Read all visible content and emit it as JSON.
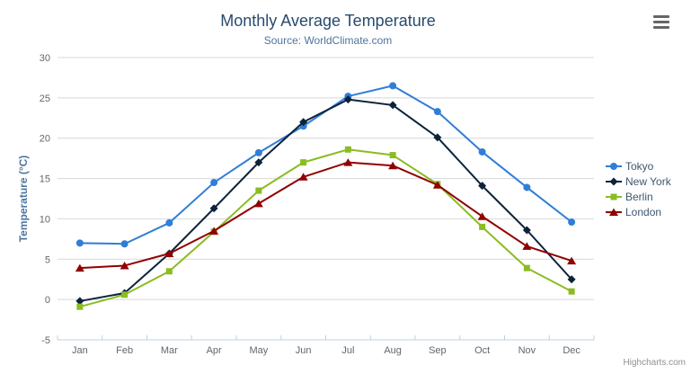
{
  "chart_data": {
    "type": "line",
    "title": "Monthly Average Temperature",
    "subtitle": "Source: WorldClimate.com",
    "xlabel": "",
    "ylabel": "Temperature (°C)",
    "categories": [
      "Jan",
      "Feb",
      "Mar",
      "Apr",
      "May",
      "Jun",
      "Jul",
      "Aug",
      "Sep",
      "Oct",
      "Nov",
      "Dec"
    ],
    "yticks": [
      -5,
      0,
      5,
      10,
      15,
      20,
      25,
      30
    ],
    "ylim": [
      -5,
      30
    ],
    "grid": true,
    "legend_position": "right",
    "series": [
      {
        "name": "Tokyo",
        "marker": "circle",
        "color": "#2f7ed8",
        "values": [
          7.0,
          6.9,
          9.5,
          14.5,
          18.2,
          21.5,
          25.2,
          26.5,
          23.3,
          18.3,
          13.9,
          9.6
        ]
      },
      {
        "name": "New York",
        "marker": "diamond",
        "color": "#0d233a",
        "values": [
          -0.2,
          0.8,
          5.7,
          11.3,
          17.0,
          22.0,
          24.8,
          24.1,
          20.1,
          14.1,
          8.6,
          2.5
        ]
      },
      {
        "name": "Berlin",
        "marker": "square",
        "color": "#8bbc21",
        "values": [
          -0.9,
          0.6,
          3.5,
          8.4,
          13.5,
          17.0,
          18.6,
          17.9,
          14.3,
          9.0,
          3.9,
          1.0
        ]
      },
      {
        "name": "London",
        "marker": "triangle",
        "color": "#910000",
        "values": [
          3.9,
          4.2,
          5.7,
          8.5,
          11.9,
          15.2,
          17.0,
          16.6,
          14.2,
          10.3,
          6.6,
          4.8
        ]
      }
    ]
  },
  "credits": "Highcharts.com",
  "colors": {
    "title": "#274b6d",
    "subtitle": "#4d759e",
    "axis_title": "#4d759e",
    "tick_label": "#666666",
    "legend_text": "#3e576f",
    "grid": "#d8d8d8",
    "axis_line": "#c0d0e0",
    "background": "#ffffff",
    "export_icon": "#666666",
    "credits": "#909090"
  }
}
